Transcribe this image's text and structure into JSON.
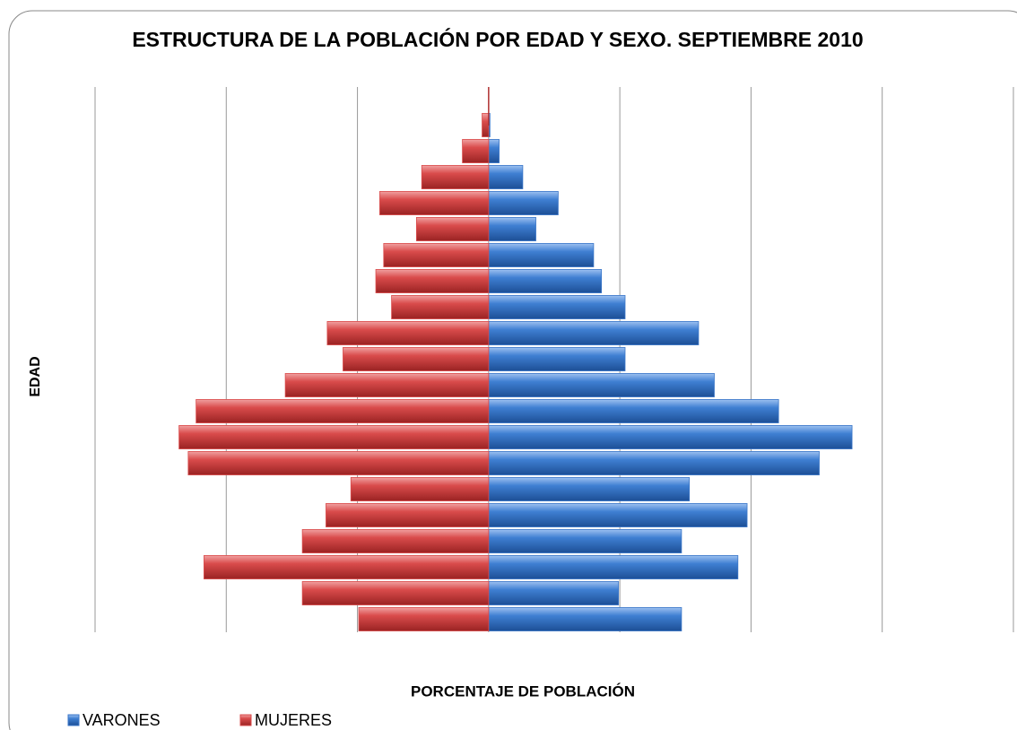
{
  "chart_data": {
    "type": "pyramid",
    "title": "ESTRUCTURA DE LA POBLACIÓN POR EDAD Y SEXO. SEPTIEMBRE 2010",
    "x_label": "PORCENTAJE DE POBLACIÓN",
    "y_label": "EDAD",
    "series": [
      {
        "name": "VARONES",
        "color": "#3a76c8",
        "values": [
          1.47,
          0.99,
          1.9,
          1.47,
          1.97,
          1.53,
          2.52,
          2.77,
          2.21,
          1.72,
          1.04,
          1.6,
          1.04,
          0.86,
          0.8,
          0.36,
          0.53,
          0.26,
          0.08,
          0.01
        ]
      },
      {
        "name": "MUJERES",
        "color": "#d94b4b",
        "values": [
          -0.99,
          -1.42,
          -2.17,
          -1.42,
          -1.24,
          -1.05,
          -2.29,
          -2.36,
          -2.23,
          -1.55,
          -1.11,
          -1.23,
          -0.74,
          -0.86,
          -0.8,
          -0.55,
          -0.83,
          -0.51,
          -0.2,
          -0.05
        ]
      }
    ],
    "xlim": [
      -3,
      4
    ],
    "xticks": [
      -3,
      -2,
      -1,
      0,
      1,
      2,
      3,
      4
    ],
    "grid": true,
    "legend": "bottom-left"
  }
}
